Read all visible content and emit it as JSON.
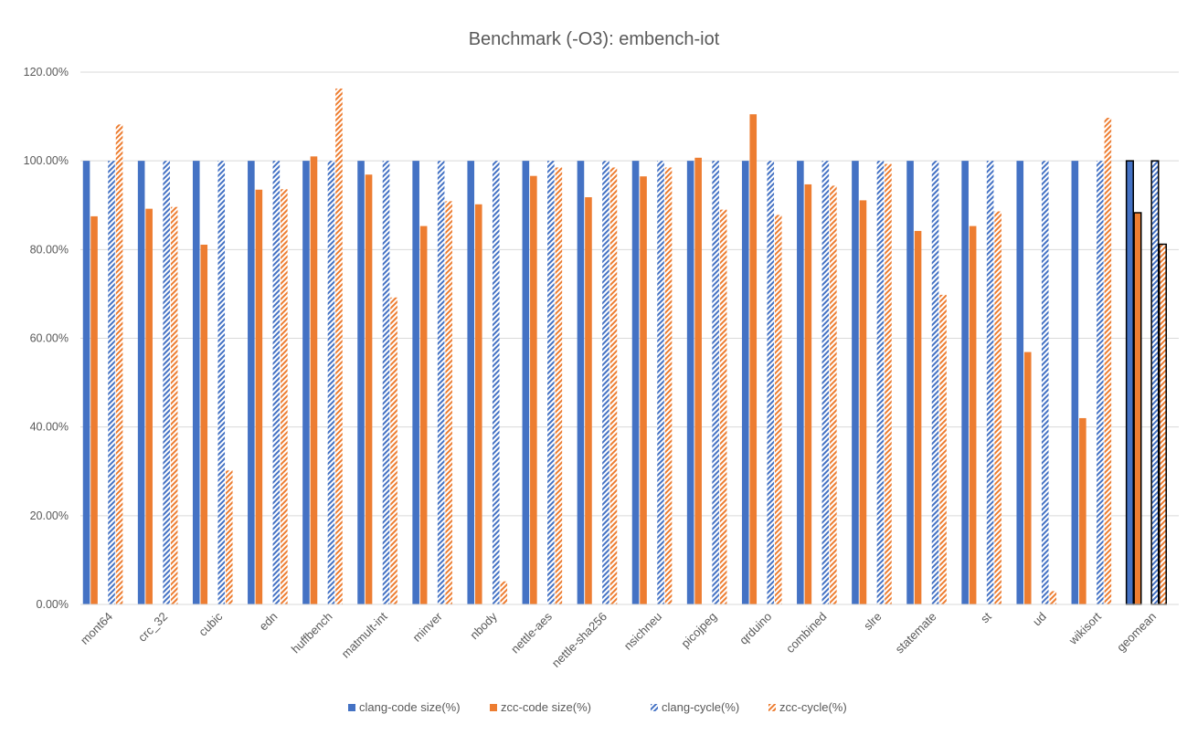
{
  "chart_data": {
    "type": "bar",
    "title": "Benchmark (-O3): embench-iot",
    "xlabel": "",
    "ylabel": "",
    "ylim": [
      0,
      1.2
    ],
    "y_ticks": [
      0,
      0.2,
      0.4,
      0.6,
      0.8,
      1.0,
      1.2
    ],
    "y_tick_labels": [
      "0.00%",
      "20.00%",
      "40.00%",
      "60.00%",
      "80.00%",
      "100.00%",
      "120.00%"
    ],
    "grid": true,
    "legend_position": "bottom",
    "categories": [
      "mont64",
      "crc_32",
      "cubic",
      "edn",
      "huffbench",
      "matmult-int",
      "minver",
      "nbody",
      "nettle-aes",
      "nettle-sha256",
      "nsichneu",
      "picojpeg",
      "qrduino",
      "combined",
      "slre",
      "statemate",
      "st",
      "ud",
      "wikisort",
      "geomean"
    ],
    "series": [
      {
        "name": "clang-code size(%)",
        "color": "#4472C4",
        "pattern": "solid",
        "values": [
          1.0,
          1.0,
          1.0,
          1.0,
          1.0,
          1.0,
          1.0,
          1.0,
          1.0,
          1.0,
          1.0,
          1.0,
          1.0,
          1.0,
          1.0,
          1.0,
          1.0,
          1.0,
          1.0,
          1.0
        ]
      },
      {
        "name": "zcc-code size(%)",
        "color": "#ED7D31",
        "pattern": "solid",
        "values": [
          0.875,
          0.892,
          0.811,
          0.935,
          1.01,
          0.969,
          0.853,
          0.902,
          0.966,
          0.918,
          0.965,
          1.007,
          1.105,
          0.947,
          0.911,
          0.842,
          0.853,
          0.569,
          0.42,
          0.883
        ]
      },
      {
        "name": "clang-cycle(%)",
        "color": "#4472C4",
        "pattern": "hatched",
        "values": [
          1.0,
          1.0,
          1.0,
          1.0,
          1.0,
          1.0,
          1.0,
          1.0,
          1.0,
          1.0,
          1.0,
          1.0,
          1.0,
          1.0,
          1.0,
          1.0,
          1.0,
          1.0,
          1.0,
          1.0
        ]
      },
      {
        "name": "zcc-cycle(%)",
        "color": "#ED7D31",
        "pattern": "hatched",
        "values": [
          1.082,
          0.896,
          0.302,
          0.936,
          1.163,
          0.692,
          0.909,
          0.052,
          0.985,
          0.985,
          0.985,
          0.89,
          0.878,
          0.944,
          0.993,
          0.698,
          0.886,
          0.03,
          1.097,
          0.812
        ]
      }
    ],
    "outlined_category": "geomean"
  }
}
